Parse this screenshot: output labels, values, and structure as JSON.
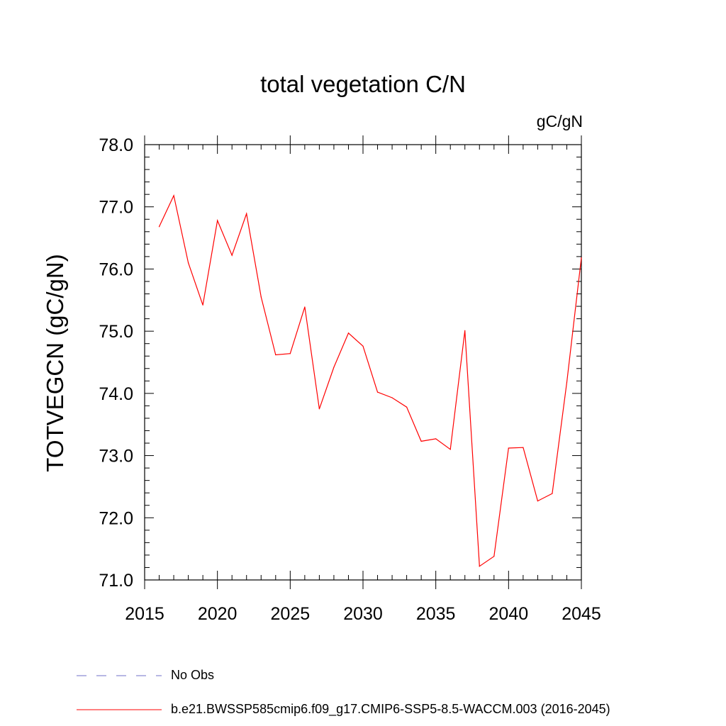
{
  "chart_data": {
    "type": "line",
    "title": "total vegetation C/N",
    "units": "gC/gN",
    "xlabel": "",
    "ylabel": "TOTVEGCN  (gC/gN)",
    "xlim": [
      2015,
      2045
    ],
    "ylim": [
      71.0,
      78.0
    ],
    "x_ticks": [
      2015,
      2020,
      2025,
      2030,
      2035,
      2040,
      2045
    ],
    "y_ticks": [
      "71.0",
      "72.0",
      "73.0",
      "74.0",
      "75.0",
      "76.0",
      "77.0",
      "78.0"
    ],
    "series": [
      {
        "name": "b.e21.BWSSP585cmip6.f09_g17.CMIP6-SSP5-8.5-WACCM.003 (2016-2045)",
        "color": "#ff0000",
        "style": "solid",
        "x": [
          2016,
          2017,
          2018,
          2019,
          2020,
          2021,
          2022,
          2023,
          2024,
          2025,
          2026,
          2027,
          2028,
          2029,
          2030,
          2031,
          2032,
          2033,
          2034,
          2035,
          2036,
          2037,
          2038,
          2039,
          2040,
          2041,
          2042,
          2043,
          2044,
          2045
        ],
        "y": [
          76.68,
          77.18,
          76.1,
          75.42,
          76.78,
          76.22,
          76.89,
          75.55,
          74.62,
          74.64,
          75.39,
          73.75,
          74.42,
          74.97,
          74.76,
          74.02,
          73.93,
          73.78,
          73.23,
          73.27,
          73.1,
          75.01,
          71.22,
          71.38,
          73.12,
          73.13,
          72.27,
          72.39,
          74.18,
          76.18
        ]
      }
    ],
    "legend": [
      {
        "label": "No Obs",
        "color": "#6f6fc8",
        "style": "dashed"
      },
      {
        "label": "b.e21.BWSSP585cmip6.f09_g17.CMIP6-SSP5-8.5-WACCM.003 (2016-2045)",
        "color": "#ff0000",
        "style": "solid"
      }
    ]
  }
}
